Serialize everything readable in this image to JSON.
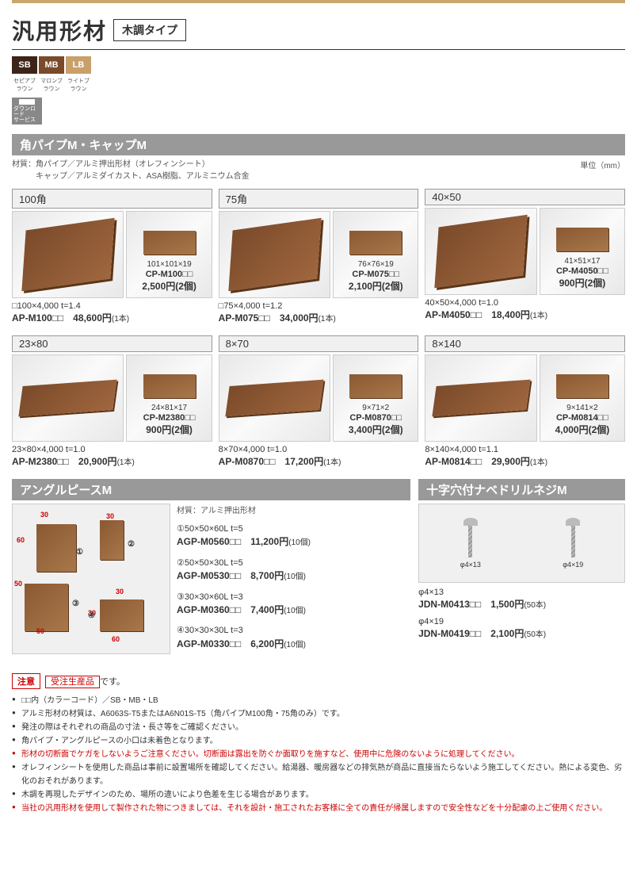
{
  "header": {
    "title": "汎用形材",
    "type_badge": "木調タイプ"
  },
  "swatches": [
    {
      "code": "SB",
      "label": "セピアブラウン",
      "color": "#3d2418"
    },
    {
      "code": "MB",
      "label": "マロンブラウン",
      "color": "#7a4a2a"
    },
    {
      "code": "LB",
      "label": "ライトブラウン",
      "color": "#c9a06a"
    }
  ],
  "dl_service": "ダウンロード\nサービス",
  "section1": {
    "title": "角パイプM・キャップM",
    "material": "材質：角パイプ／アルミ押出形材（オレフィンシート）\n　　　キャップ／アルミダイカスト、ASA樹脂、アルミニウム合金",
    "unit": "単位（mm）"
  },
  "products_row1": [
    {
      "header": "100角",
      "cap": {
        "dim": "101×101×19",
        "code": "CP-M100□□",
        "price": "2,500円(2個)"
      },
      "spec": "□100×4,000 t=1.4",
      "code": "AP-M100□□",
      "price": "48,600円",
      "unit": "(1本)",
      "shape": "block"
    },
    {
      "header": "75角",
      "cap": {
        "dim": "76×76×19",
        "code": "CP-M075□□",
        "price": "2,100円(2個)"
      },
      "spec": "□75×4,000 t=1.2",
      "code": "AP-M075□□",
      "price": "34,000円",
      "unit": "(1本)",
      "shape": "block"
    },
    {
      "header": "40×50",
      "cap": {
        "dim": "41×51×17",
        "code": "CP-M4050□□",
        "price": "900円(2個)"
      },
      "spec": "40×50×4,000 t=1.0",
      "code": "AP-M4050□□",
      "price": "18,400円",
      "unit": "(1本)",
      "shape": "block"
    }
  ],
  "products_row2": [
    {
      "header": "23×80",
      "cap": {
        "dim": "24×81×17",
        "code": "CP-M2380□□",
        "price": "900円(2個)"
      },
      "spec": "23×80×4,000 t=1.0",
      "code": "AP-M2380□□",
      "price": "20,900円",
      "unit": "(1本)",
      "shape": "flat"
    },
    {
      "header": "8×70",
      "cap": {
        "dim": "9×71×2",
        "code": "CP-M0870□□",
        "price": "3,400円(2個)"
      },
      "spec": "8×70×4,000 t=1.0",
      "code": "AP-M0870□□",
      "price": "17,200円",
      "unit": "(1本)",
      "shape": "flat"
    },
    {
      "header": "8×140",
      "cap": {
        "dim": "9×141×2",
        "code": "CP-M0814□□",
        "price": "4,000円(2個)"
      },
      "spec": "8×140×4,000 t=1.1",
      "code": "AP-M0814□□",
      "price": "29,900円",
      "unit": "(1本)",
      "shape": "flat"
    }
  ],
  "angle": {
    "title": "アングルピースM",
    "material": "材質：アルミ押出形材",
    "items": [
      {
        "num": "①",
        "spec": "50×50×60L t=5",
        "code": "AGP-M0560□□",
        "price": "11,200円",
        "unit": "(10個)"
      },
      {
        "num": "②",
        "spec": "50×50×30L t=5",
        "code": "AGP-M0530□□",
        "price": "8,700円",
        "unit": "(10個)"
      },
      {
        "num": "③",
        "spec": "30×30×60L t=3",
        "code": "AGP-M0360□□",
        "price": "7,400円",
        "unit": "(10個)"
      },
      {
        "num": "④",
        "spec": "30×30×30L t=3",
        "code": "AGP-M0330□□",
        "price": "6,200円",
        "unit": "(10個)"
      }
    ]
  },
  "screw": {
    "title": "十字穴付ナベドリルネジM",
    "labels": [
      "φ4×13",
      "φ4×19"
    ],
    "items": [
      {
        "spec": "φ4×13",
        "code": "JDN-M0413□□",
        "price": "1,500円",
        "unit": "(50本)"
      },
      {
        "spec": "φ4×19",
        "code": "JDN-M0419□□",
        "price": "2,100円",
        "unit": "(50本)"
      }
    ]
  },
  "notes": {
    "badge": "注意",
    "order_badge": "受注生産品",
    "order_suffix": "です。",
    "items": [
      {
        "text": "□□内（カラーコード）／SB・MB・LB",
        "red": false
      },
      {
        "text": "アルミ形材の材質は、A6063S-T5またはA6N01S-T5（角パイプM100角・75角のみ）です。",
        "red": false
      },
      {
        "text": "発注の際はそれぞれの商品の寸法・長さ等をご確認ください。",
        "red": false
      },
      {
        "text": "角パイプ・アングルピースの小口は未着色となります。",
        "red": false
      },
      {
        "text": "形材の切断面でケガをしないようご注意ください。切断面は露出を防ぐか面取りを施すなど、使用中に危険のないように処理してください。",
        "red": true
      },
      {
        "text": "オレフィンシートを使用した商品は事前に設置場所を確認してください。給湯器、暖房器などの排気熱が商品に直接当たらないよう施工してください。熱による変色、劣化のおそれがあります。",
        "red": false
      },
      {
        "text": "木調を再現したデザインのため、場所の違いにより色差を生じる場合があります。",
        "red": false
      },
      {
        "text": "当社の汎用形材を使用して製作された物につきましては、それを設計・施工されたお客様に全ての責任が帰属しますので安全性などを十分配慮の上ご使用ください。",
        "red": true
      }
    ]
  }
}
